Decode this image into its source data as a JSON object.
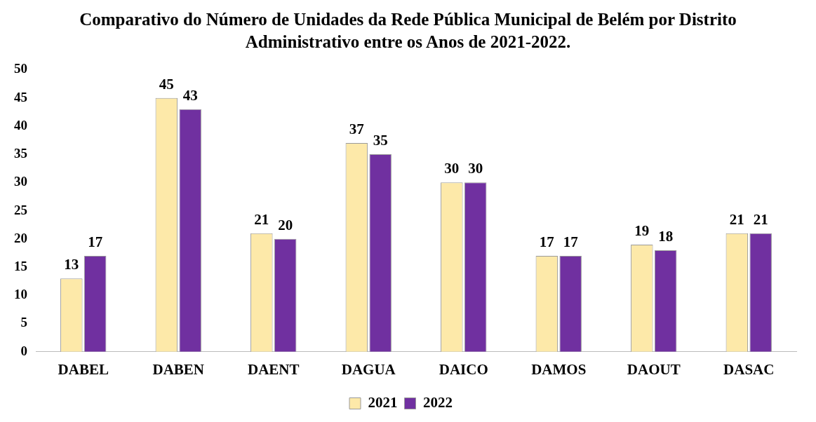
{
  "chart_data": {
    "type": "bar",
    "title": "Comparativo do Número de Unidades da Rede Pública Municipal  de Belém por Distrito  Administrativo  entre os Anos de 2021-2022.",
    "categories": [
      "DABEL",
      "DABEN",
      "DAENT",
      "DAGUA",
      "DAICO",
      "DAMOS",
      "DAOUT",
      "DASAC"
    ],
    "series": [
      {
        "name": "2021",
        "color": "#fde9a9",
        "values": [
          13,
          45,
          21,
          37,
          30,
          17,
          19,
          21
        ]
      },
      {
        "name": "2022",
        "color": "#7030a0",
        "values": [
          17,
          43,
          20,
          35,
          30,
          17,
          18,
          21
        ]
      }
    ],
    "ylim": [
      0,
      50
    ],
    "yticks": [
      0,
      5,
      10,
      15,
      20,
      25,
      30,
      35,
      40,
      45,
      50
    ],
    "grid": false,
    "legend": "bottom",
    "data_labels": true
  }
}
